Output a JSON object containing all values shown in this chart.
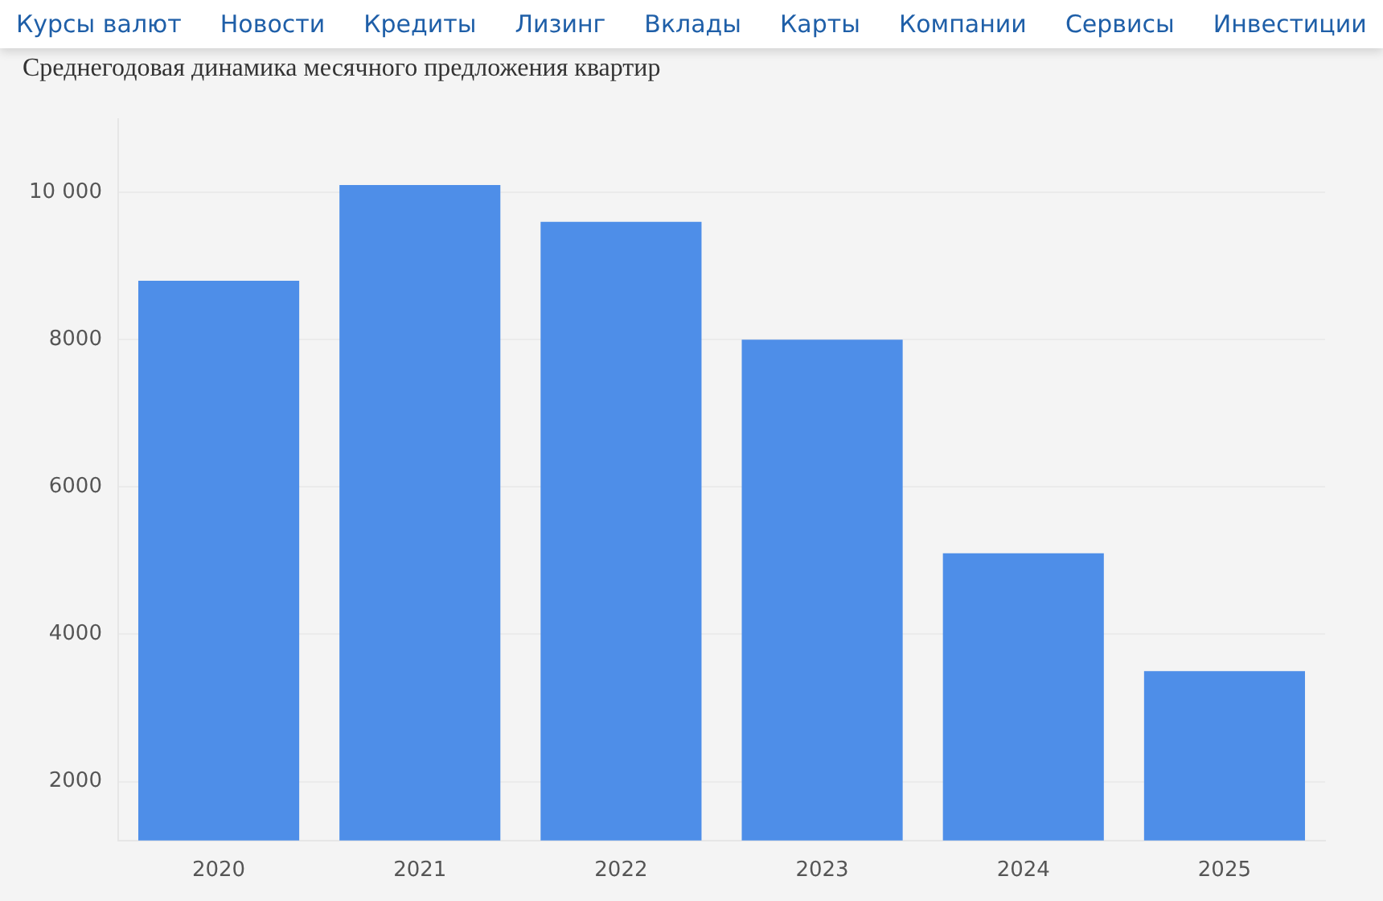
{
  "chart_data": {
    "type": "bar",
    "title": "Среднегодовая динамика месячного предложения квартир",
    "annotations": [
      "Курсы валют",
      "Новости",
      "Кредиты",
      "Лизинг",
      "Вклады",
      "Карты",
      "Компании",
      "Сервисы",
      "Инвестиции"
    ],
    "categories": [
      "2020",
      "2021",
      "2022",
      "2023",
      "2024",
      "2025"
    ],
    "values": [
      8800,
      10100,
      9600,
      8000,
      5100,
      3500
    ],
    "color": "#4e8ee8",
    "ylim": [
      1200,
      11000
    ],
    "yticks": [
      2000,
      4000,
      6000,
      8000,
      {
        "value": 10000,
        "label": "10 000"
      }
    ],
    "grid": "y",
    "legend": false
  }
}
